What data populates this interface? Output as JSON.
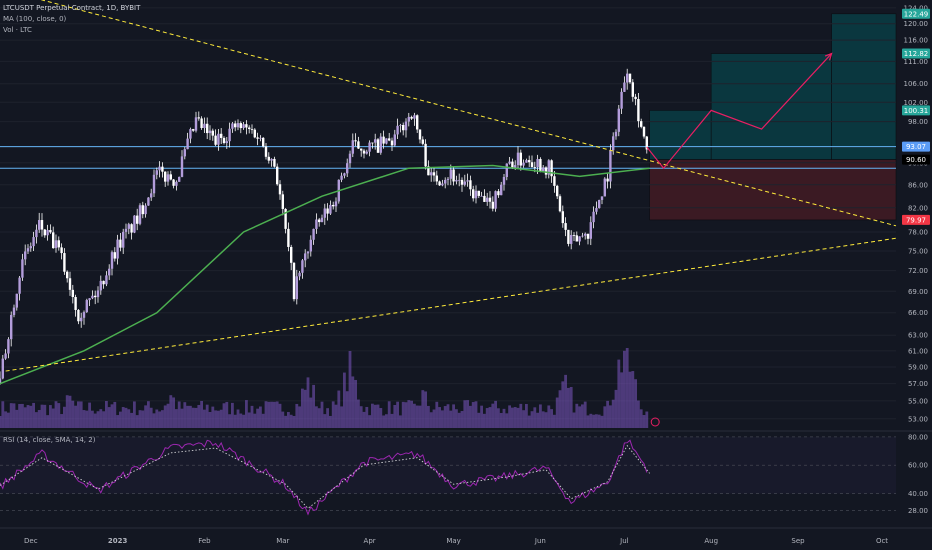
{
  "legend": {
    "symbol": "LTCUSDT Perpetual Contract, 1D, BYBIT",
    "ma": "MA (100, close, 0)",
    "vol": "Vol · LTC",
    "rsi": "RSI (14, close, SMA, 14, 2)"
  },
  "colors": {
    "background": "#131722",
    "candle_body": "#b39ddb",
    "candle_wick": "#ffffff",
    "ma_line": "#4caf50",
    "volume": "#7e57c2",
    "rsi_line": "#9c27b0",
    "rsi_ma": "#ffffff",
    "trendline": "#ffeb3b",
    "horizontal": "#64b5f6",
    "target_zone": "#006064",
    "stop_zone": "#4a1c24",
    "projection": "#e91e63"
  },
  "chart_data": {
    "type": "candlestick",
    "x_range": [
      "2022-11-20",
      "2023-10-06"
    ],
    "price_axis": {
      "scale": "log",
      "ticks": [
        124.0,
        120.0,
        116.0,
        111.0,
        106.0,
        102.0,
        98.0,
        93.0,
        90.0,
        86.0,
        82.0,
        78.0,
        75.0,
        72.0,
        69.0,
        66.0,
        63.0,
        61.0,
        59.0,
        57.0,
        55.0,
        53.0
      ],
      "range": [
        52.0,
        125.0
      ]
    },
    "x_ticks": [
      "Dec",
      "2023",
      "Feb",
      "Mar",
      "Apr",
      "May",
      "Jun",
      "Jul",
      "Aug",
      "Sep",
      "Oct"
    ],
    "price_labels": [
      {
        "value": "122.49",
        "price": 122.49,
        "color": "#26a69a"
      },
      {
        "value": "112.82",
        "price": 112.82,
        "color": "#26a69a"
      },
      {
        "value": "100.31",
        "price": 100.31,
        "color": "#26a69a"
      },
      {
        "value": "93.07",
        "price": 93.07,
        "color": "#5b9cf6"
      },
      {
        "value": "90.60",
        "price": 90.6,
        "color": "#000000"
      },
      {
        "value": "79.97",
        "price": 79.97,
        "color": "#f23645"
      }
    ],
    "close_series_weekly": [
      {
        "x": "2022-11-20",
        "close": 57.0
      },
      {
        "x": "2022-11-27",
        "close": 72.0
      },
      {
        "x": "2022-12-04",
        "close": 79.0
      },
      {
        "x": "2022-12-11",
        "close": 75.0
      },
      {
        "x": "2022-12-18",
        "close": 66.0
      },
      {
        "x": "2022-12-25",
        "close": 69.0
      },
      {
        "x": "2023-01-01",
        "close": 76.0
      },
      {
        "x": "2023-01-08",
        "close": 80.0
      },
      {
        "x": "2023-01-15",
        "close": 88.0
      },
      {
        "x": "2023-01-22",
        "close": 87.0
      },
      {
        "x": "2023-01-29",
        "close": 98.0
      },
      {
        "x": "2023-02-05",
        "close": 94.0
      },
      {
        "x": "2023-02-12",
        "close": 97.0
      },
      {
        "x": "2023-02-19",
        "close": 96.0
      },
      {
        "x": "2023-02-26",
        "close": 90.0
      },
      {
        "x": "2023-03-05",
        "close": 69.0
      },
      {
        "x": "2023-03-12",
        "close": 78.0
      },
      {
        "x": "2023-03-19",
        "close": 83.0
      },
      {
        "x": "2023-03-26",
        "close": 93.0
      },
      {
        "x": "2023-04-02",
        "close": 93.0
      },
      {
        "x": "2023-04-09",
        "close": 94.0
      },
      {
        "x": "2023-04-16",
        "close": 100.0
      },
      {
        "x": "2023-04-23",
        "close": 87.0
      },
      {
        "x": "2023-04-30",
        "close": 88.0
      },
      {
        "x": "2023-05-07",
        "close": 85.0
      },
      {
        "x": "2023-05-14",
        "close": 82.0
      },
      {
        "x": "2023-05-21",
        "close": 90.0
      },
      {
        "x": "2023-05-28",
        "close": 91.0
      },
      {
        "x": "2023-06-04",
        "close": 89.0
      },
      {
        "x": "2023-06-11",
        "close": 76.0
      },
      {
        "x": "2023-06-18",
        "close": 78.0
      },
      {
        "x": "2023-06-25",
        "close": 88.0
      },
      {
        "x": "2023-07-02",
        "close": 110.0
      },
      {
        "x": "2023-07-09",
        "close": 92.0
      }
    ],
    "ma_100": [
      {
        "x": "2022-11-20",
        "y": 57.0
      },
      {
        "x": "2022-12-20",
        "y": 61.0
      },
      {
        "x": "2023-01-15",
        "y": 66.0
      },
      {
        "x": "2023-02-15",
        "y": 78.0
      },
      {
        "x": "2023-03-15",
        "y": 84.0
      },
      {
        "x": "2023-04-15",
        "y": 89.0
      },
      {
        "x": "2023-05-15",
        "y": 89.5
      },
      {
        "x": "2023-06-15",
        "y": 87.5
      },
      {
        "x": "2023-07-10",
        "y": 89.0
      }
    ],
    "volume_relative": [
      {
        "x": "2022-11-25",
        "v": 0.3
      },
      {
        "x": "2022-12-15",
        "v": 0.35
      },
      {
        "x": "2023-01-20",
        "v": 0.4
      },
      {
        "x": "2023-03-10",
        "v": 0.55
      },
      {
        "x": "2023-03-25",
        "v": 0.7
      },
      {
        "x": "2023-04-20",
        "v": 0.4
      },
      {
        "x": "2023-06-10",
        "v": 0.5
      },
      {
        "x": "2023-07-01",
        "v": 1.0
      },
      {
        "x": "2023-07-10",
        "v": 0.3
      }
    ],
    "rsi": {
      "ticks": [
        80.0,
        60.0,
        40.0,
        28.0
      ],
      "range": [
        20.0,
        82.0
      ],
      "values": [
        {
          "x": "2022-11-20",
          "y": 45.0
        },
        {
          "x": "2022-12-05",
          "y": 68.0
        },
        {
          "x": "2022-12-25",
          "y": 42.0
        },
        {
          "x": "2023-01-20",
          "y": 72.0
        },
        {
          "x": "2023-02-05",
          "y": 76.0
        },
        {
          "x": "2023-03-02",
          "y": 46.0
        },
        {
          "x": "2023-03-10",
          "y": 26.0
        },
        {
          "x": "2023-03-30",
          "y": 62.0
        },
        {
          "x": "2023-04-18",
          "y": 68.0
        },
        {
          "x": "2023-05-01",
          "y": 46.0
        },
        {
          "x": "2023-05-20",
          "y": 52.0
        },
        {
          "x": "2023-06-03",
          "y": 58.0
        },
        {
          "x": "2023-06-12",
          "y": 34.0
        },
        {
          "x": "2023-06-25",
          "y": 48.0
        },
        {
          "x": "2023-07-02",
          "y": 78.0
        },
        {
          "x": "2023-07-10",
          "y": 55.0
        }
      ]
    },
    "trendlines": [
      {
        "name": "upper",
        "from": {
          "x": "2022-11-25",
          "price": 128.0
        },
        "to": {
          "x": "2023-10-06",
          "price": 79.0
        }
      },
      {
        "name": "lower",
        "from": {
          "x": "2022-11-22",
          "price": 58.5
        },
        "to": {
          "x": "2023-10-06",
          "price": 77.0
        }
      }
    ],
    "horizontal_levels": [
      93.07,
      89.0
    ],
    "projection_path": [
      {
        "x": "2023-07-09",
        "price": 93.0
      },
      {
        "x": "2023-07-15",
        "price": 89.0
      },
      {
        "x": "2023-08-01",
        "price": 100.31
      },
      {
        "x": "2023-08-19",
        "price": 96.5
      },
      {
        "x": "2023-09-13",
        "price": 112.82
      }
    ],
    "zones": [
      {
        "kind": "target",
        "from": "2023-07-10",
        "to": "2023-08-01",
        "top": 100.31,
        "bottom": 90.6
      },
      {
        "kind": "target",
        "from": "2023-08-01",
        "to": "2023-09-13",
        "top": 112.82,
        "bottom": 90.6
      },
      {
        "kind": "target",
        "from": "2023-09-13",
        "to": "2023-10-06",
        "top": 122.49,
        "bottom": 90.6
      },
      {
        "kind": "stop",
        "from": "2023-07-10",
        "to": "2023-10-06",
        "top": 90.6,
        "bottom": 79.97
      }
    ]
  }
}
